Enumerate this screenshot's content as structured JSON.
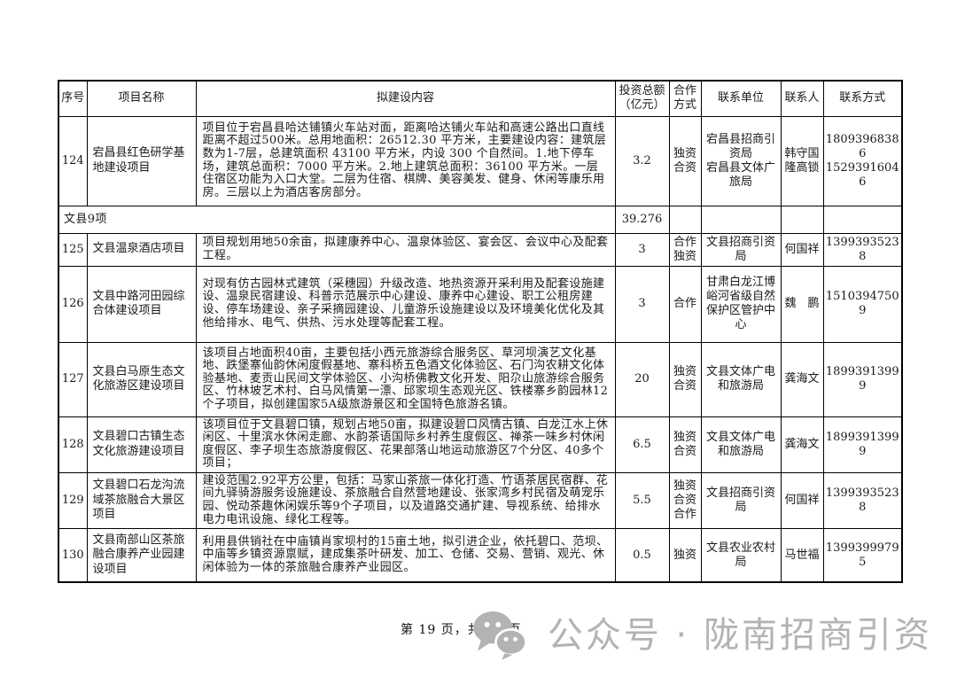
{
  "page": {
    "footer_page_text": "第 19 页，共 46 页",
    "watermark_text": "公众号 · 陇南招商引资",
    "watermark_color": "#b3b3b3"
  },
  "table": {
    "headers": {
      "no": "序号",
      "name": "项目名称",
      "content": "拟建设内容",
      "investment": "投资总额\n（亿元）",
      "mode": "合作\n方式",
      "unit": "联系单位",
      "person": "联系人",
      "phone": "联系方式"
    },
    "rows": [
      {
        "no": "124",
        "name": "宕昌县红色研学基地建设项目",
        "content": "项目位于宕昌县哈达铺镇火车站对面，距离哈达铺火车站和高速公路出口直线距离不超过500米。总用地面积：26512.30 平方米，主要建设内容：建筑层数为1-7层，总建筑面积 43100 平方米，内设 300 个自然间。1.地下停车场，建筑总面积：7000 平方米。2.地上建筑总面积：36100 平方米。一层住宿区功能为入口大堂。二层为住宿、棋牌、美容美发、健身、休闲等康乐用房。三层以上为酒店客房部分。",
        "investment": "3.2",
        "mode": "独资\n合资",
        "unit": "宕昌县招商引资局\n宕昌县文体广旅局",
        "person": "韩守国\n隆高锁",
        "phone": "18093968386\n15293916046"
      },
      {
        "group": true,
        "label": "文县9项",
        "investment": "39.276"
      },
      {
        "no": "125",
        "name": "文县温泉酒店项目",
        "content": "项目规划用地50余亩，拟建康养中心、温泉体验区、宴会区、会议中心及配套工程。",
        "investment": "3",
        "mode": "合作\n独资",
        "unit": "文县招商引资局",
        "person": "何国祥",
        "phone": "13993935238"
      },
      {
        "no": "126",
        "name": "文县中路河田园综合体建设项目",
        "content": "对现有仿古园林式建筑（采穗园）升级改造、地热资源开采利用及配套设施建设、温泉民宿建设、科普示范展示中心建设、康养中心建设、职工公租房建设、停车场建设、亲子采摘园建设、儿童游乐设施建设以及环境美化优化及其他给排水、电气、供热、污水处理等配套工程。",
        "investment": "3",
        "mode": "合作",
        "unit": "甘肃白龙江博峪河省级自然保护区管护中心",
        "person": "魏　鹏",
        "phone": "15103947509"
      },
      {
        "no": "127",
        "name": "文县白马原生态文化旅游区建设项目",
        "content": "该项目占地面积40亩，主要包括小西元旅游综合服务区、草河坝演艺文化基地、跌堡寨仙韵休闲度假基地、寨科桥五色酒文化体验区、石门沟农耕文化体验基地、麦贡山民间文学体验区、小沟桥佛教文化开发、阳尕山旅游综合服务区、竹林坡艺术村、白马风情第一漂、邱家坝生态观光区、铁楼寨乡韵园林12个子项目，拟创建国家5A级旅游景区和全国特色旅游名镇。",
        "investment": "20",
        "mode": "独资\n合资",
        "unit": "文县文体广电和旅游局",
        "person": "龚海文",
        "phone": "18993913999"
      },
      {
        "no": "128",
        "name": "文县碧口古镇生态文化旅游建设项目",
        "content": "该项目位于文县碧口镇，规划占地50亩，拟建设碧口风情古镇、白龙江水上休闲区、十里滨水休闲走廊、水韵茶语国际乡村养生度假区、禅茶一味乡村休闲度假区、李子坝生态旅游度假区、花果部落山地运动旅游区7个分区、40多个项目；",
        "investment": "6.5",
        "mode": "独资\n合资",
        "unit": "文县文体广电和旅游局",
        "person": "龚海文",
        "phone": "18993913999"
      },
      {
        "no": "129",
        "name": "文县碧口石龙沟流域茶旅融合大景区项目",
        "content": "建设范围2.92平方公里，包括：马家山茶旅一体化打造、竹语茶居民宿群、花间九驿骑游服务设施建设、茶旅融合自然营地建设、张家湾乡村民宿及萌宠乐园、悦动茶趣休闲娱乐等9个子项目，以及道路交通扩建、导视系统、给排水电力电讯设施、绿化工程等。",
        "investment": "5.5",
        "mode": "独资\n合资\n合作",
        "unit": "文县招商引资局",
        "person": "何国祥",
        "phone": "13993935238"
      },
      {
        "no": "130",
        "name": "文县南部山区茶旅融合康养产业园建设项目",
        "content": "利用县供销社在中庙镇肖家坝村的15亩土地，拟引进企业，依托碧口、范坝、中庙等乡镇资源禀赋，建成集茶叶研发、加工、仓储、交易、营销、观光、休闲体验为一体的茶旅融合康养产业园区。",
        "investment": "0.5",
        "mode": "独资",
        "unit": "文县农业农村局",
        "person": "马世福",
        "phone": "13993999795"
      }
    ]
  }
}
